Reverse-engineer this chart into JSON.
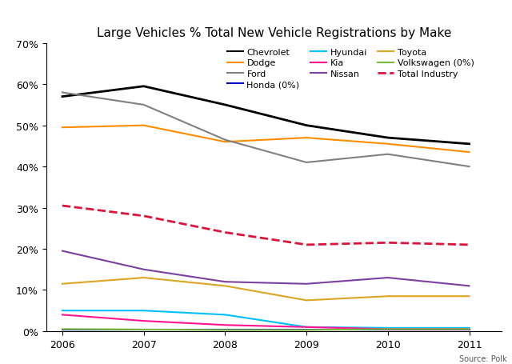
{
  "title": "Large Vehicles % Total New Vehicle Registrations by Make",
  "source": "Source: Polk",
  "years": [
    2006,
    2007,
    2008,
    2009,
    2010,
    2011
  ],
  "series_order": [
    "Chevrolet",
    "Dodge",
    "Ford",
    "Honda (0%)",
    "Hyundai",
    "Kia",
    "Nissan",
    "Toyota",
    "Volkswagen (0%)",
    "Total Industry"
  ],
  "series": {
    "Chevrolet": {
      "values": [
        57,
        59.5,
        55,
        50,
        47,
        45.5
      ],
      "color": "#000000",
      "linestyle": "solid",
      "linewidth": 2.0
    },
    "Dodge": {
      "values": [
        49.5,
        50,
        46,
        47,
        45.5,
        43.5
      ],
      "color": "#FF8C00",
      "linestyle": "solid",
      "linewidth": 1.5
    },
    "Ford": {
      "values": [
        58,
        55,
        46.5,
        41,
        43,
        40
      ],
      "color": "#808080",
      "linestyle": "solid",
      "linewidth": 1.5
    },
    "Honda (0%)": {
      "values": [
        0.3,
        0.3,
        0.3,
        0.3,
        0.3,
        0.3
      ],
      "color": "#0000CD",
      "linestyle": "solid",
      "linewidth": 1.5
    },
    "Hyundai": {
      "values": [
        5.0,
        5.0,
        4.0,
        1.0,
        0.8,
        0.8
      ],
      "color": "#00BFFF",
      "linestyle": "solid",
      "linewidth": 1.5
    },
    "Kia": {
      "values": [
        4.0,
        2.5,
        1.5,
        1.0,
        0.5,
        0.5
      ],
      "color": "#FF1493",
      "linestyle": "solid",
      "linewidth": 1.5
    },
    "Nissan": {
      "values": [
        19.5,
        15.0,
        12.0,
        11.5,
        13.0,
        11.0
      ],
      "color": "#7B3FA0",
      "linestyle": "solid",
      "linewidth": 1.5
    },
    "Toyota": {
      "values": [
        11.5,
        13.0,
        11.0,
        7.5,
        8.5,
        8.5
      ],
      "color": "#DAA520",
      "linestyle": "solid",
      "linewidth": 1.5
    },
    "Volkswagen (0%)": {
      "values": [
        0.5,
        0.4,
        0.3,
        0.3,
        0.5,
        0.5
      ],
      "color": "#7CBA3A",
      "linestyle": "solid",
      "linewidth": 1.5
    },
    "Total Industry": {
      "values": [
        30.5,
        28.0,
        24.0,
        21.0,
        21.5,
        21.0
      ],
      "color": "#DC143C",
      "linestyle": "dashed",
      "linewidth": 2.0
    }
  },
  "ylim": [
    0,
    70
  ],
  "yticks": [
    0,
    10,
    20,
    30,
    40,
    50,
    60,
    70
  ],
  "ytick_labels": [
    "0%",
    "10%",
    "20%",
    "30%",
    "40%",
    "50%",
    "60%",
    "70%"
  ],
  "xlim": [
    2005.8,
    2011.4
  ],
  "background_color": "#ffffff",
  "legend_ncol": 3,
  "legend_fontsize": 8,
  "title_fontsize": 11
}
